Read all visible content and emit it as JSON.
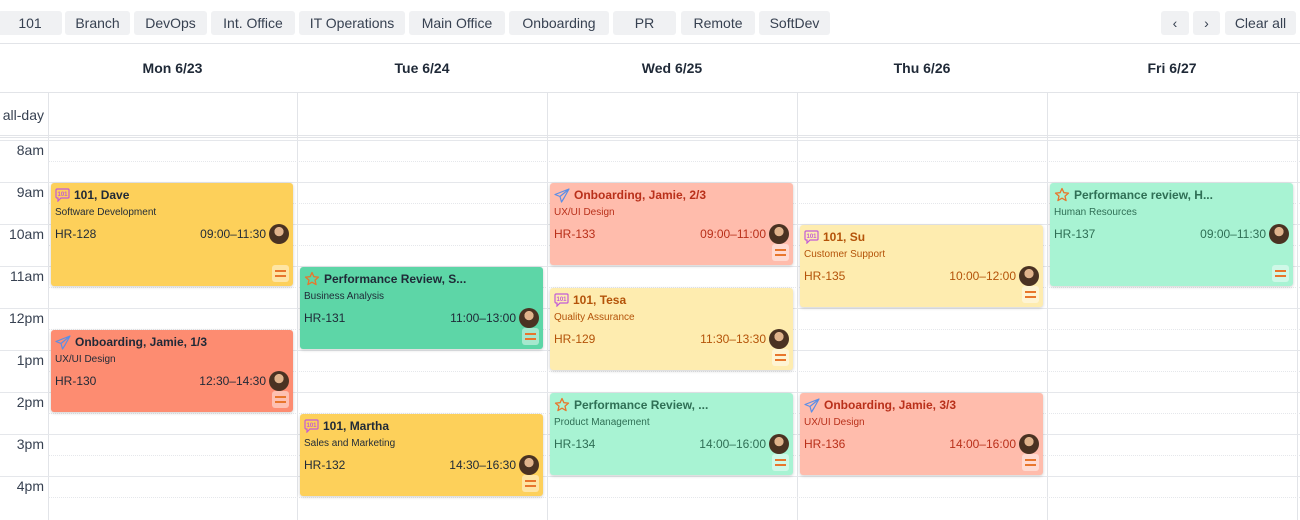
{
  "filters": [
    "101",
    "Branch",
    "DevOps",
    "Int. Office",
    "IT Operations",
    "Main Office",
    "Onboarding",
    "PR",
    "Remote",
    "SoftDev"
  ],
  "nav": {
    "prev": "‹",
    "next": "›",
    "clear": "Clear all"
  },
  "days": [
    "Mon 6/23",
    "Tue 6/24",
    "Wed 6/25",
    "Thu 6/26",
    "Fri 6/27"
  ],
  "allday": "all-day",
  "hours": [
    "8am",
    "9am",
    "10am",
    "11am",
    "12pm",
    "1pm",
    "2pm",
    "3pm",
    "4pm"
  ],
  "palette": {
    "yellow": {
      "bg": "#fdd05a",
      "fg": "#1f2937"
    },
    "green": {
      "bg": "#5dd6a7",
      "fg": "#1f2937"
    },
    "salmon": {
      "bg": "#fd8c71",
      "fg": "#1f2937"
    },
    "lightyellow": {
      "bg": "#feecaf",
      "fg": "#b45309"
    },
    "lightgreen": {
      "bg": "#a8f3d3",
      "fg": "#2f6f55"
    },
    "lightsalmon": {
      "bg": "#ffbcac",
      "fg": "#b9301a"
    }
  },
  "events": [
    {
      "day": 0,
      "start": "09:00",
      "end": "11:30",
      "title": "101, Dave",
      "subtitle": "Software Development",
      "code": "HR-128",
      "time": "09:00–11:30",
      "icon": "chat-101",
      "color": "yellow"
    },
    {
      "day": 0,
      "start": "12:30",
      "end": "14:30",
      "title": "Onboarding, Jamie, 1/3",
      "subtitle": "UX/UI Design",
      "code": "HR-130",
      "time": "12:30–14:30",
      "icon": "paper-plane",
      "color": "salmon"
    },
    {
      "day": 1,
      "start": "11:00",
      "end": "13:00",
      "title": "Performance Review, S...",
      "subtitle": "Business Analysis",
      "code": "HR-131",
      "time": "11:00–13:00",
      "icon": "star",
      "color": "green"
    },
    {
      "day": 1,
      "start": "14:30",
      "end": "16:30",
      "title": "101, Martha",
      "subtitle": "Sales and Marketing",
      "code": "HR-132",
      "time": "14:30–16:30",
      "icon": "chat-101",
      "color": "yellow"
    },
    {
      "day": 2,
      "start": "09:00",
      "end": "11:00",
      "title": "Onboarding, Jamie, 2/3",
      "subtitle": "UX/UI Design",
      "code": "HR-133",
      "time": "09:00–11:00",
      "icon": "paper-plane",
      "color": "lightsalmon"
    },
    {
      "day": 2,
      "start": "11:30",
      "end": "13:30",
      "title": "101, Tesa",
      "subtitle": "Quality Assurance",
      "code": "HR-129",
      "time": "11:30–13:30",
      "icon": "chat-101",
      "color": "lightyellow"
    },
    {
      "day": 2,
      "start": "14:00",
      "end": "16:00",
      "title": "Performance Review, ...",
      "subtitle": "Product Management",
      "code": "HR-134",
      "time": "14:00–16:00",
      "icon": "star",
      "color": "lightgreen"
    },
    {
      "day": 3,
      "start": "10:00",
      "end": "12:00",
      "title": "101, Su",
      "subtitle": "Customer Support",
      "code": "HR-135",
      "time": "10:00–12:00",
      "icon": "chat-101",
      "color": "lightyellow"
    },
    {
      "day": 3,
      "start": "14:00",
      "end": "16:00",
      "title": "Onboarding, Jamie, 3/3",
      "subtitle": "UX/UI Design",
      "code": "HR-136",
      "time": "14:00–16:00",
      "icon": "paper-plane",
      "color": "lightsalmon"
    },
    {
      "day": 4,
      "start": "09:00",
      "end": "11:30",
      "title": "Performance review, H...",
      "subtitle": "Human Resources",
      "code": "HR-137",
      "time": "09:00–11:30",
      "icon": "star",
      "color": "lightgreen"
    }
  ]
}
